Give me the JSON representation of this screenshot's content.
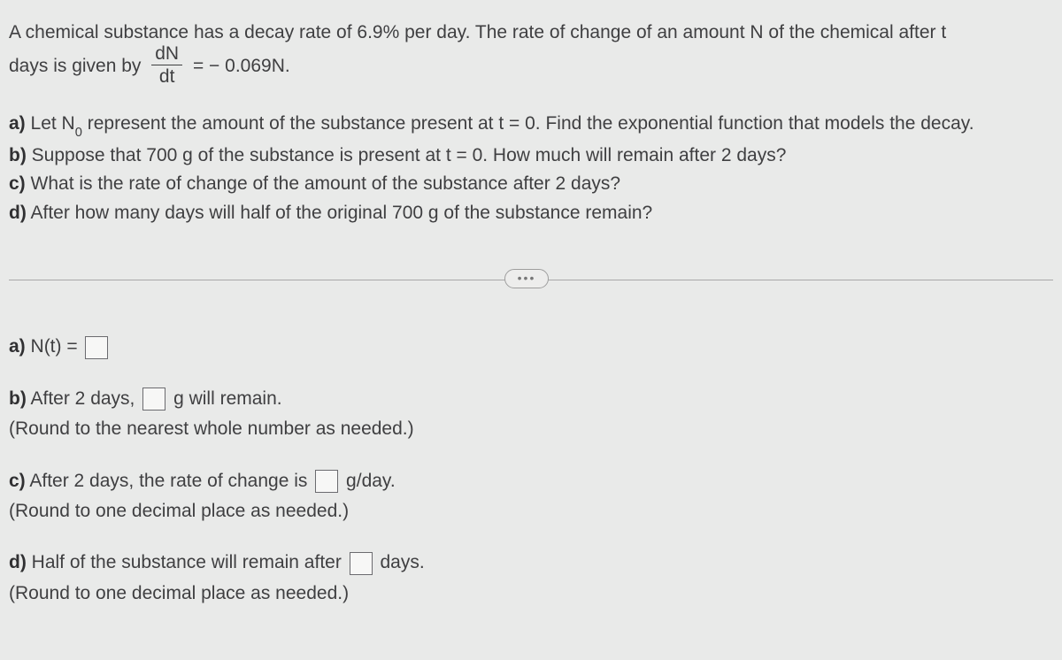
{
  "intro": {
    "line1_a": "A chemical substance has a decay rate of 6.9% per day. The rate of change of an amount N of the chemical after t",
    "line2_a": "days is given by ",
    "frac_num": "dN",
    "frac_den": "dt",
    "line2_b": " = − 0.069N."
  },
  "questions": {
    "a_label": "a)",
    "a_pre": " Let N",
    "a_sub": "0",
    "a_post": " represent the amount of the substance present at t = 0. Find the exponential function that models the decay.",
    "b_label": "b)",
    "b_text": " Suppose that 700 g of the substance is present at t = 0. How much will remain after 2 days?",
    "c_label": "c)",
    "c_text": " What is the rate of change of the amount of the substance after 2 days?",
    "d_label": "d)",
    "d_text": " After how many days will half of the original 700 g of the substance remain?"
  },
  "pill": "•••",
  "answers": {
    "a_label": "a)",
    "a_text": " N(t) = ",
    "b_label": "b)",
    "b_pre": " After 2 days, ",
    "b_post": " g will remain.",
    "b_hint": "(Round to the nearest whole number as needed.)",
    "c_label": "c)",
    "c_pre": " After 2 days, the rate of change is ",
    "c_post": " g/day.",
    "c_hint": "(Round to one decimal place as needed.)",
    "d_label": "d)",
    "d_pre": " Half of the substance will remain after ",
    "d_post": " days.",
    "d_hint": "(Round to one decimal place as needed.)"
  }
}
